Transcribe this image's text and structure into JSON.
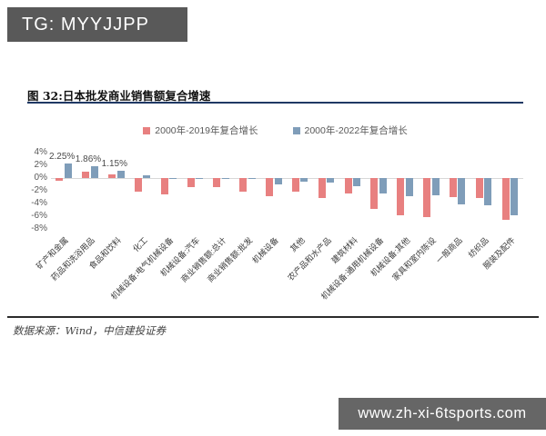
{
  "badge": {
    "text": "TG: MYYJJPP"
  },
  "figure": {
    "title": "图 32:日本批发商业销售额复合增速"
  },
  "source": {
    "text": "数据来源：Wind，中信建投证券"
  },
  "watermark": {
    "text": "www.zh-xi-6tsports.com"
  },
  "chart_data": {
    "type": "bar",
    "title": "图 32:日本批发商业销售额复合增速",
    "categories": [
      "矿产和金属",
      "药品和洗浴用品",
      "食品和饮料",
      "化工",
      "机械设备:电气机械设备",
      "机械设备:汽车",
      "商业销售额:总计",
      "商业销售额:批发",
      "机械设备",
      "其他",
      "农产品和水产品",
      "建筑材料",
      "机械设备:通用机械设备",
      "机械设备:其他",
      "家具和室内陈设",
      "一般商品",
      "纺织品",
      "服装及配件"
    ],
    "series": [
      {
        "name": "2000年-2019年复合增长",
        "color": "#e88080",
        "values": [
          -0.4,
          1.0,
          0.6,
          -2.1,
          -2.5,
          -1.4,
          -1.4,
          -2.1,
          -2.9,
          -2.1,
          -3.2,
          -2.4,
          -4.8,
          -5.8,
          -6.2,
          -3.0,
          -3.1,
          -6.6
        ]
      },
      {
        "name": "2000年-2022年复合增长",
        "color": "#7f9db9",
        "values": [
          2.25,
          1.86,
          1.15,
          0.5,
          -0.15,
          -0.1,
          -0.15,
          -0.15,
          -1.0,
          -0.6,
          -0.7,
          -1.3,
          -2.4,
          -2.8,
          -2.7,
          -4.2,
          -4.3,
          -5.9
        ]
      }
    ],
    "value_labels": [
      {
        "category_index": 0,
        "series_index": 1,
        "text": "2.25%"
      },
      {
        "category_index": 1,
        "series_index": 1,
        "text": "1.86%"
      },
      {
        "category_index": 2,
        "series_index": 1,
        "text": "1.15%"
      }
    ],
    "hatched": {
      "series_index": 0,
      "category_index": 7
    },
    "ytick_labels": [
      "4%",
      "2%",
      "0%",
      "-2%",
      "-4%",
      "-6%",
      "-8%"
    ],
    "ylim": [
      -8,
      4
    ],
    "xlabel": "",
    "ylabel": "",
    "grid": false,
    "legend_position": "top-center"
  }
}
